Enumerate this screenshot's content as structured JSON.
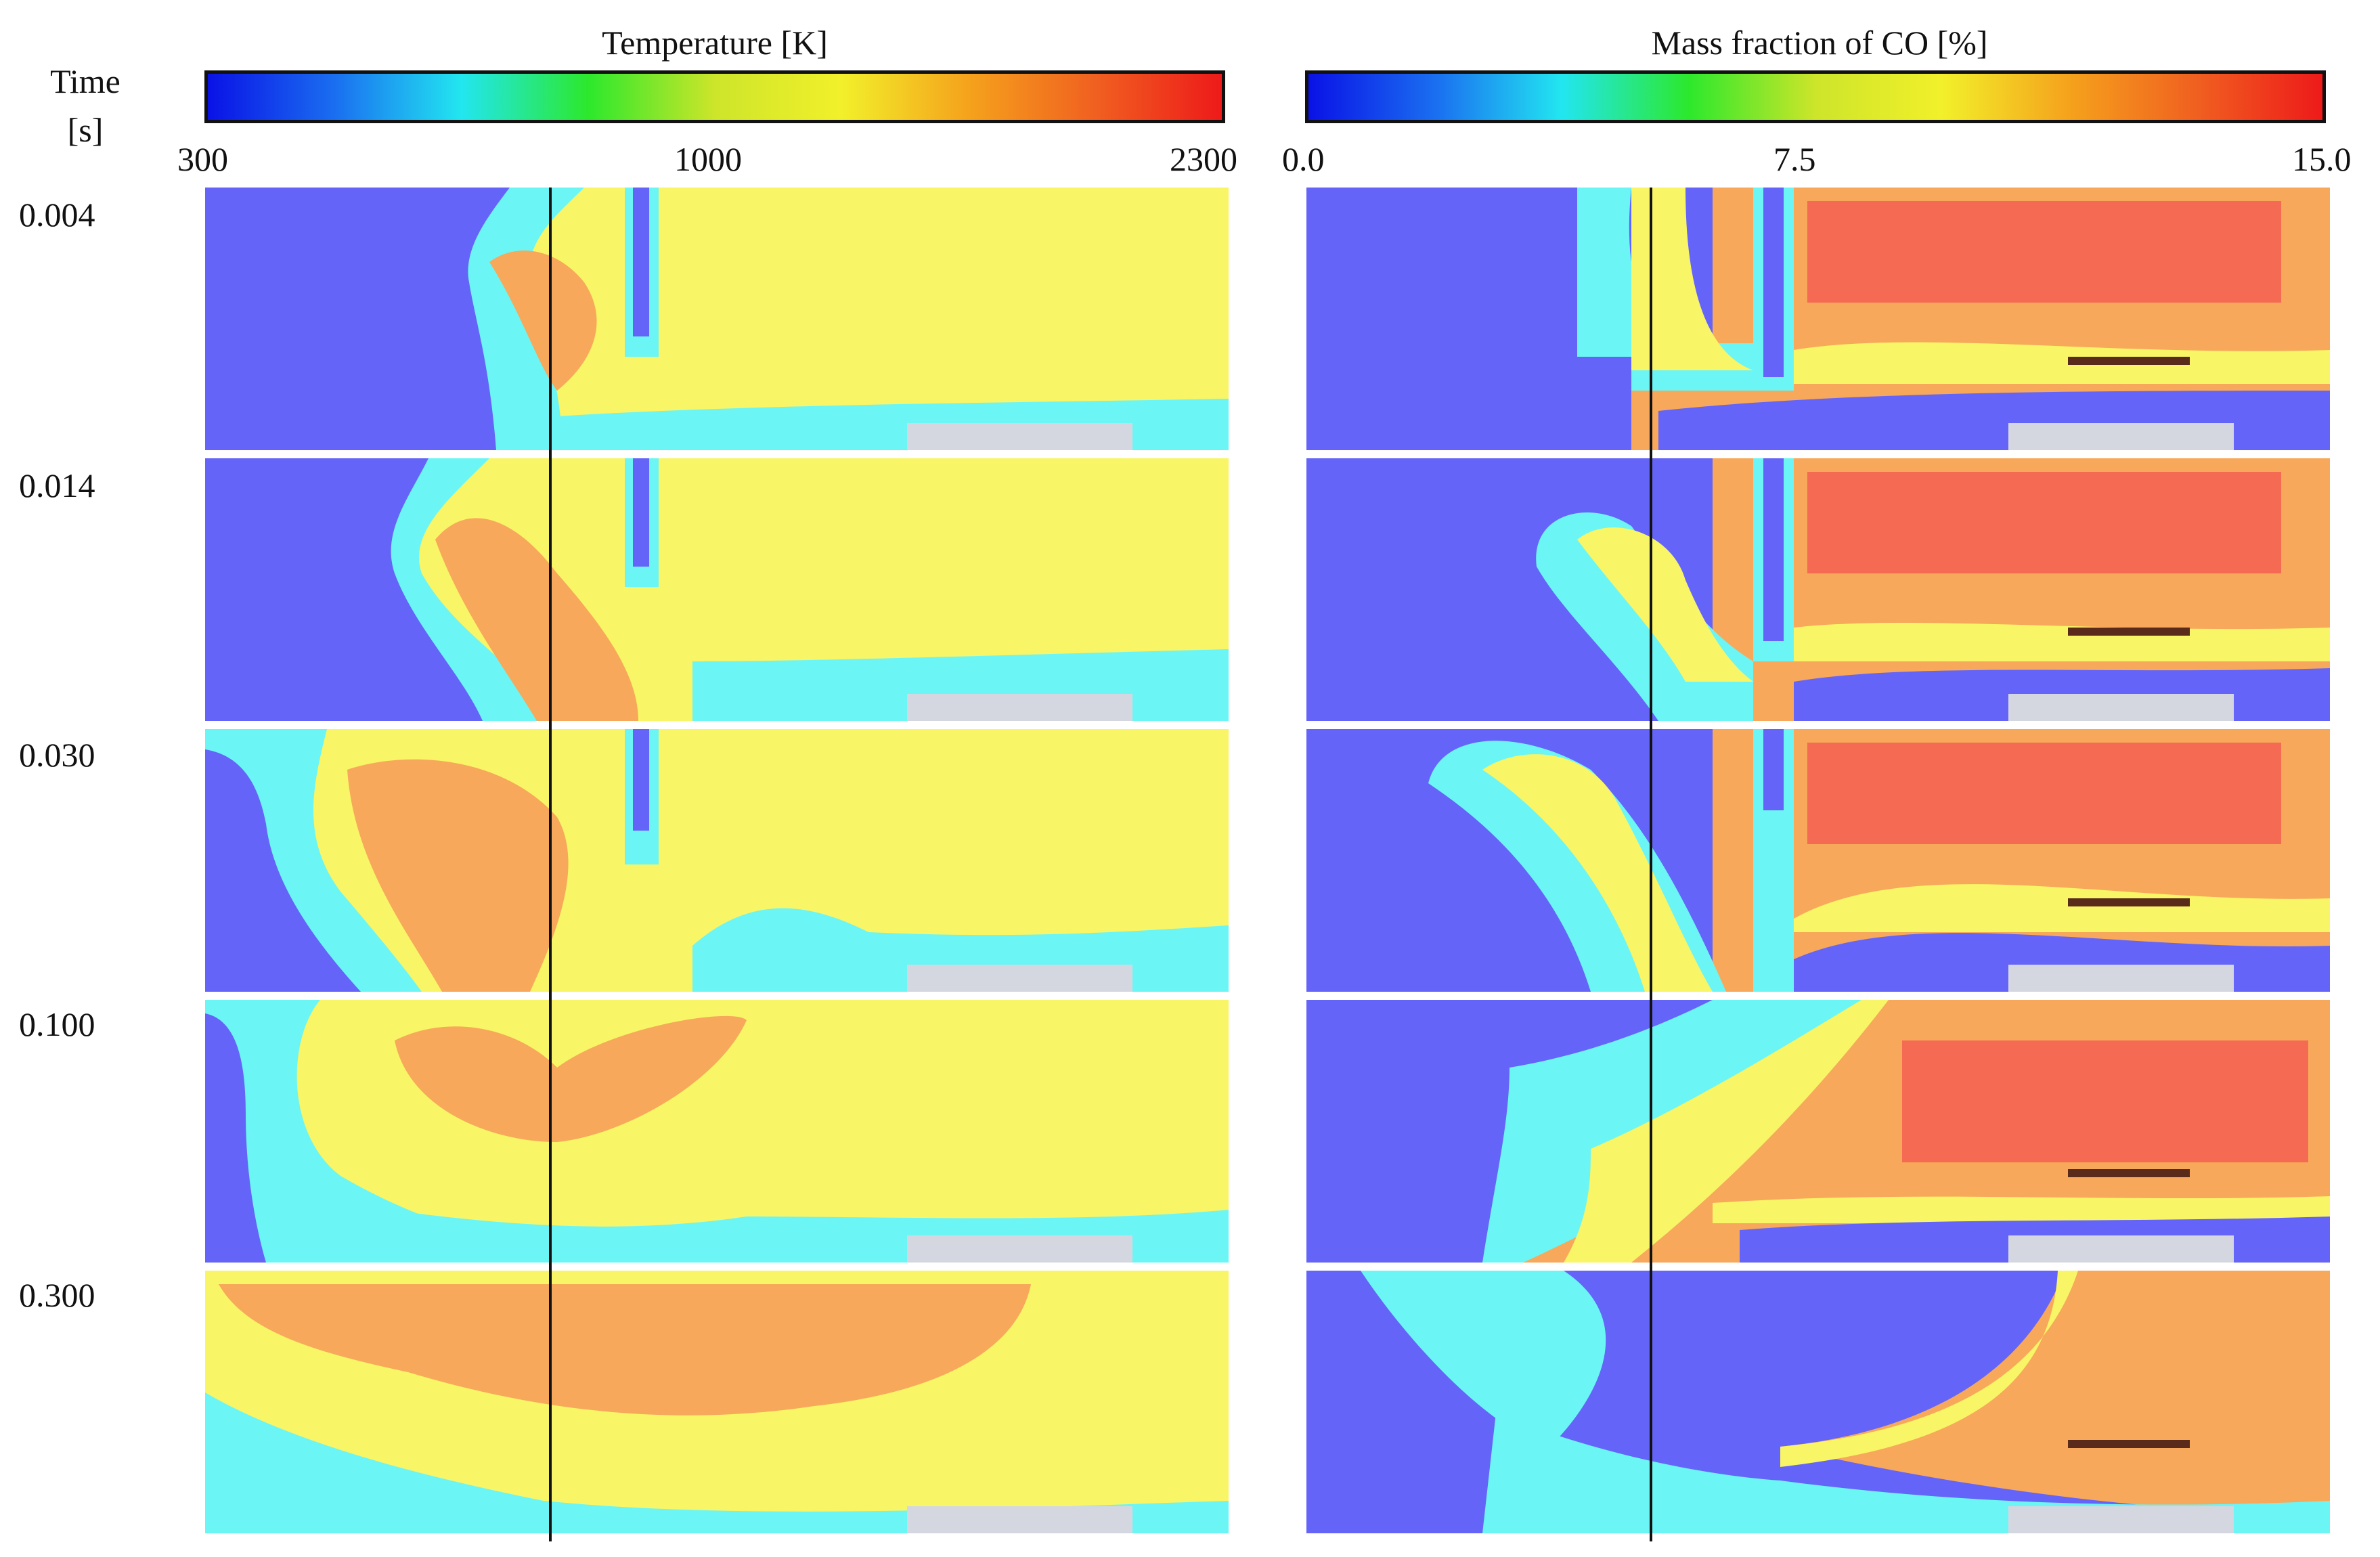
{
  "time_axis": {
    "header_line1": "Time",
    "header_line2": "[s]",
    "times": [
      "0.004",
      "0.014",
      "0.030",
      "0.100",
      "0.300"
    ]
  },
  "temperature": {
    "title": "Temperature [K]",
    "ticks": [
      "300",
      "1000",
      "2300"
    ],
    "tick_values": [
      300,
      1000,
      2300
    ]
  },
  "co_fraction": {
    "title": "Mass fraction of CO [%]",
    "ticks": [
      "0.0",
      "7.5",
      "15.0"
    ],
    "tick_values": [
      0.0,
      7.5,
      15.0
    ]
  },
  "colormap": [
    "#0a12e6",
    "#1a6ef0",
    "#22e6f0",
    "#2ce82c",
    "#cde52a",
    "#f2f02a",
    "#f5a21c",
    "#f06020",
    "#ee1a1a"
  ],
  "field_colors": {
    "cold_blue": "#6464f8",
    "cyan": "#6cf5f5",
    "green": "#7ee87a",
    "yellow": "#f8f566",
    "orange": "#f7a85a",
    "red": "#f46a52",
    "wall_grey": "#d4d7e0",
    "probe_dark": "#5a2a1a"
  }
}
